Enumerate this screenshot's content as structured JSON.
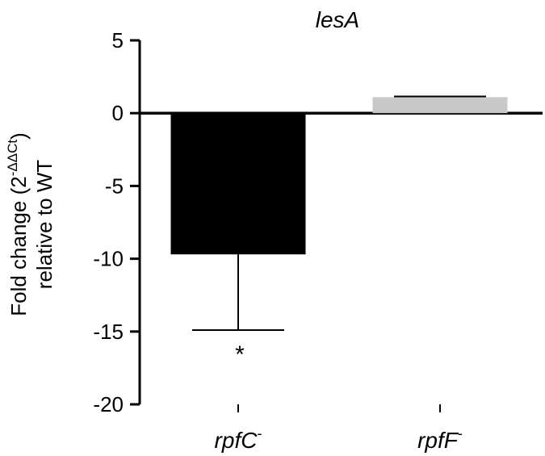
{
  "chart_data": {
    "type": "bar",
    "title": "lesA",
    "ylabel_line1_prefix": "Fold change (2",
    "ylabel_superscript": "-ΔΔCt",
    "ylabel_line1_suffix": ")",
    "ylabel_line2": "relative to WT",
    "ylim": [
      -20,
      5
    ],
    "yticks": [
      5,
      0,
      -5,
      -10,
      -15,
      -20
    ],
    "ytick_labels": [
      "5",
      "0",
      "-5",
      "-10",
      "-15",
      "-20"
    ],
    "categories": [
      {
        "base": "rpfC",
        "superscript": "-"
      },
      {
        "base": "rpfF",
        "superscript": "-"
      }
    ],
    "values": [
      -9.7,
      1.1
    ],
    "error_bars": [
      5.2,
      0.05
    ],
    "bar_colors": [
      "#000000",
      "#c8c8c8"
    ],
    "annotations": [
      "*",
      ""
    ],
    "grid": false
  }
}
